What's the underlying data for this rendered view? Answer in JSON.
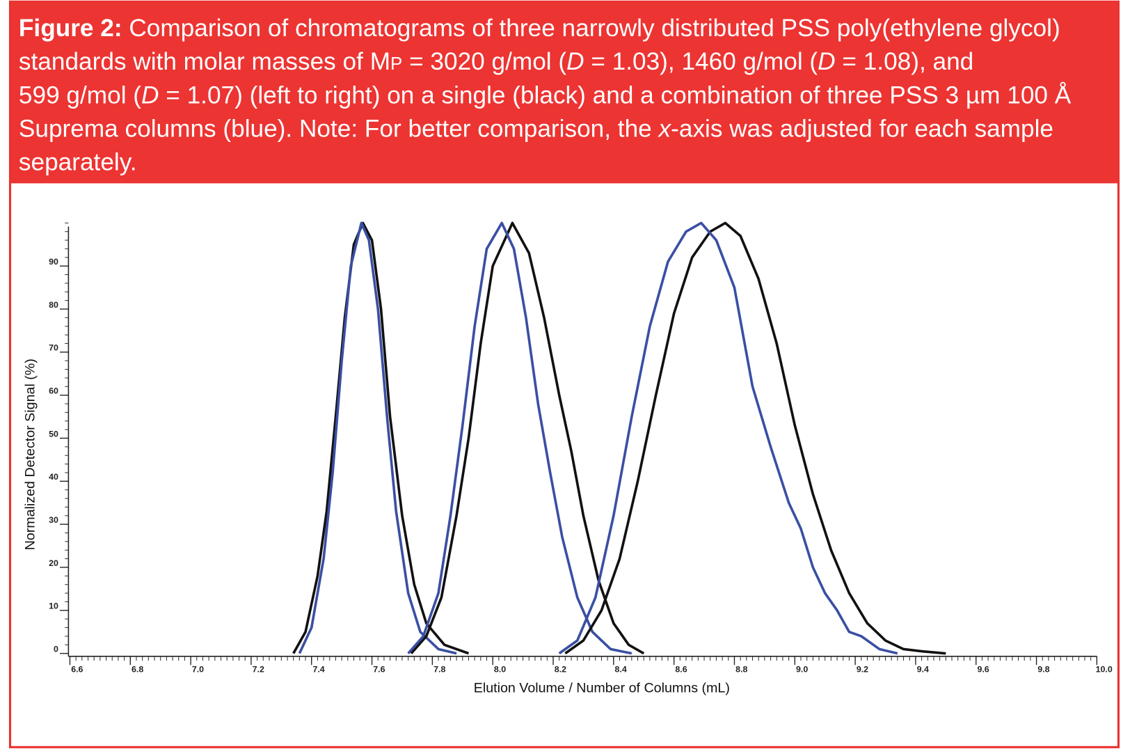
{
  "caption": {
    "lines": [
      [
        {
          "text": "Figure 2:",
          "style": "bold"
        },
        {
          "text": " Comparison of chromatograms of three narrowly distributed PSS poly(ethylene glycol)"
        }
      ],
      [
        {
          "text": "standards with molar masses of M"
        },
        {
          "text": "P",
          "style": "sub"
        },
        {
          "text": " = 3020 g/mol ("
        },
        {
          "text": "D",
          "style": "italic"
        },
        {
          "text": " = 1.03), 1460 g/mol ("
        },
        {
          "text": "D",
          "style": "italic"
        },
        {
          "text": " = 1.08), and"
        }
      ],
      [
        {
          "text": "599 g/mol ("
        },
        {
          "text": "D",
          "style": "italic"
        },
        {
          "text": " = 1.07) (left to right) on a single (black) and a combination of three PSS 3 µm 100 Å"
        }
      ],
      [
        {
          "text": "Suprema columns (blue). Note: For better comparison, the "
        },
        {
          "text": "x",
          "style": "italic"
        },
        {
          "text": "-axis was adjusted for each sample"
        }
      ],
      [
        {
          "text": "separately."
        }
      ]
    ]
  },
  "chart_data": {
    "type": "line",
    "xlabel": "Elution Volume / Number of Columns (mL)",
    "ylabel": "Normalized Detector Signal (%)",
    "xlim": [
      6.6,
      10.0
    ],
    "ylim": [
      0,
      100
    ],
    "xticks": [
      6.6,
      6.8,
      {
        "value": 7,
        "label": "7.0"
      },
      7.2,
      7.4,
      7.6,
      7.8,
      {
        "value": 8,
        "label": "8.0"
      },
      8.2,
      8.4,
      8.6,
      8.8,
      {
        "value": 9,
        "label": "9.0"
      },
      9.2,
      9.4,
      9.6,
      9.8,
      {
        "value": 10,
        "label": "10.0"
      }
    ],
    "yticks": [
      0,
      10,
      20,
      30,
      40,
      50,
      60,
      70,
      80,
      90
    ],
    "x_minor_step": 0.02,
    "y_minor_step": 2,
    "series": [
      {
        "color": "#111111",
        "x": [
          7.34,
          7.38,
          7.42,
          7.45,
          7.48,
          7.51,
          7.54,
          7.57,
          7.6,
          7.63,
          7.66,
          7.7,
          7.74,
          7.78,
          7.84,
          7.92
        ],
        "values": [
          0,
          5,
          18,
          33,
          55,
          78,
          95,
          100,
          96,
          80,
          55,
          32,
          16,
          7,
          2,
          0
        ]
      },
      {
        "color": "#3a4fa3",
        "x": [
          7.36,
          7.4,
          7.44,
          7.47,
          7.5,
          7.53,
          7.565,
          7.59,
          7.62,
          7.65,
          7.68,
          7.72,
          7.76,
          7.82,
          7.88
        ],
        "values": [
          0,
          6,
          22,
          42,
          68,
          90,
          100,
          96,
          80,
          55,
          33,
          14,
          5,
          1,
          0
        ]
      },
      {
        "color": "#111111",
        "x": [
          7.73,
          7.78,
          7.83,
          7.88,
          7.92,
          7.96,
          8.0,
          8.065,
          8.12,
          8.17,
          8.22,
          8.26,
          8.3,
          8.35,
          8.4,
          8.45,
          8.5
        ],
        "values": [
          0,
          4,
          13,
          32,
          50,
          72,
          90,
          100,
          93,
          78,
          60,
          47,
          32,
          17,
          7,
          2,
          0
        ]
      },
      {
        "color": "#3a4fa3",
        "x": [
          7.72,
          7.77,
          7.82,
          7.86,
          7.9,
          7.94,
          7.98,
          8.03,
          8.07,
          8.11,
          8.15,
          8.19,
          8.23,
          8.28,
          8.33,
          8.39,
          8.46
        ],
        "values": [
          0,
          4,
          14,
          32,
          53,
          76,
          94,
          100,
          94,
          78,
          58,
          42,
          27,
          13,
          5,
          1,
          0
        ]
      },
      {
        "color": "#111111",
        "x": [
          8.24,
          8.3,
          8.36,
          8.42,
          8.48,
          8.54,
          8.6,
          8.66,
          8.72,
          8.77,
          8.82,
          8.88,
          8.94,
          9.0,
          9.06,
          9.12,
          9.18,
          9.24,
          9.3,
          9.36,
          9.42,
          9.5
        ],
        "values": [
          0,
          3,
          10,
          22,
          40,
          60,
          79,
          92,
          98,
          100,
          97,
          87,
          72,
          53,
          37,
          24,
          14,
          7,
          3,
          1,
          0.5,
          0
        ]
      },
      {
        "color": "#3a4fa3",
        "x": [
          8.22,
          8.28,
          8.34,
          8.4,
          8.46,
          8.52,
          8.58,
          8.64,
          8.69,
          8.74,
          8.8,
          8.86,
          8.92,
          8.98,
          9.02,
          9.06,
          9.1,
          9.14,
          9.18,
          9.22,
          9.28,
          9.34
        ],
        "values": [
          0,
          3,
          13,
          32,
          55,
          76,
          91,
          98,
          100,
          96,
          85,
          62,
          48,
          35,
          29,
          20,
          14,
          10,
          5,
          4,
          1,
          0
        ]
      }
    ]
  }
}
